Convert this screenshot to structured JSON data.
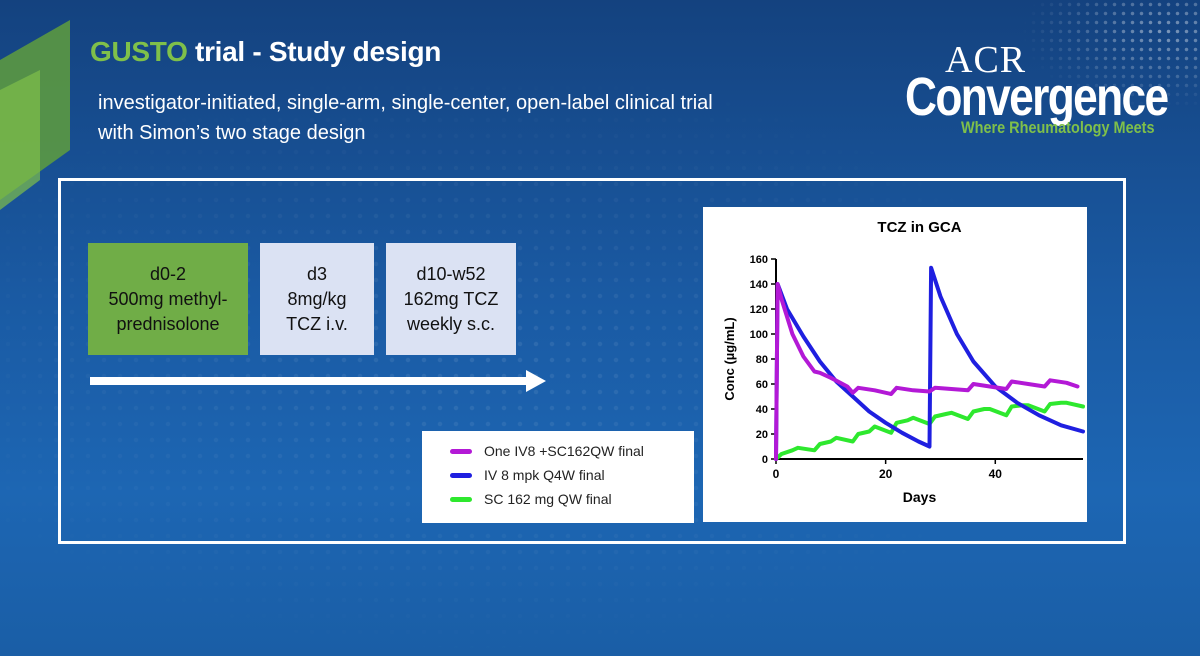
{
  "title": {
    "part1": "GUSTO",
    "part2": " trial  - Study design"
  },
  "subtitle": {
    "line1": "investigator-initiated, single-arm, single-center, open-label clinical trial",
    "line2": "with Simon’s two stage design"
  },
  "logo": {
    "acr": "ACR",
    "convergence": "Convergence",
    "tagline": "Where Rheumatology Meets"
  },
  "steps": [
    {
      "line1": "d0-2",
      "line2": "500mg methyl-",
      "line3": "prednisolone"
    },
    {
      "line1": "d3",
      "line2": "8mg/kg",
      "line3": "TCZ i.v."
    },
    {
      "line1": "d10-w52",
      "line2": "162mg TCZ",
      "line3": "weekly s.c."
    }
  ],
  "legend": [
    {
      "label": "One  IV8 +SC162QW final",
      "color": "#b319d6"
    },
    {
      "label": "IV 8 mpk Q4W final",
      "color": "#1f1fe0"
    },
    {
      "label": "SC 162 mg QW final",
      "color": "#2ee82e"
    }
  ],
  "colors": {
    "green": "#7fc04a",
    "step_green": "#70ad47",
    "step_blue": "#dbe2f3"
  },
  "chart_data": {
    "type": "line",
    "title": "TCZ in GCA",
    "xlabel": "Days",
    "ylabel": "Conc  (µg/mL)",
    "xlim": [
      0,
      56
    ],
    "ylim": [
      0,
      160
    ],
    "xticks": [
      0,
      20,
      40
    ],
    "yticks": [
      0,
      20,
      40,
      60,
      80,
      100,
      120,
      140,
      160
    ],
    "series": [
      {
        "name": "One  IV8 +SC162QW final",
        "color": "#b319d6",
        "x": [
          0,
          0.3,
          1,
          3,
          5,
          7,
          8,
          10,
          13,
          14,
          15,
          18,
          21,
          22,
          25,
          28,
          29,
          32,
          35,
          36,
          39,
          42,
          43,
          46,
          49,
          50,
          53,
          55
        ],
        "y": [
          0,
          140,
          128,
          100,
          82,
          70,
          69,
          65,
          58,
          53,
          57,
          55,
          52,
          57,
          55,
          54,
          57,
          56,
          55,
          60,
          58,
          56,
          62,
          60,
          58,
          63,
          61,
          58
        ]
      },
      {
        "name": "IV 8 mpk Q4W final",
        "color": "#1f1fe0",
        "x": [
          0,
          0.3,
          2,
          5,
          8,
          11,
          14,
          17,
          20,
          23,
          26,
          28,
          28.3,
          30,
          33,
          36,
          40,
          44,
          48,
          52,
          56
        ],
        "y": [
          0,
          140,
          120,
          98,
          78,
          62,
          50,
          38,
          29,
          21,
          14,
          10,
          153,
          130,
          100,
          78,
          58,
          45,
          35,
          27,
          22
        ]
      },
      {
        "name": "SC 162 mg QW final",
        "color": "#2ee82e",
        "x": [
          0,
          1,
          3,
          4,
          7,
          8,
          10,
          11,
          14,
          15,
          17,
          18,
          21,
          22,
          24,
          25,
          28,
          29,
          31,
          32,
          35,
          36,
          38,
          39,
          42,
          43,
          45,
          46,
          49,
          50,
          52,
          53,
          56
        ],
        "y": [
          0,
          4,
          7,
          9,
          7,
          12,
          14,
          17,
          14,
          20,
          22,
          26,
          21,
          29,
          31,
          33,
          28,
          34,
          36,
          37,
          32,
          38,
          40,
          40,
          35,
          42,
          43,
          43,
          38,
          44,
          45,
          45,
          42
        ]
      }
    ]
  }
}
